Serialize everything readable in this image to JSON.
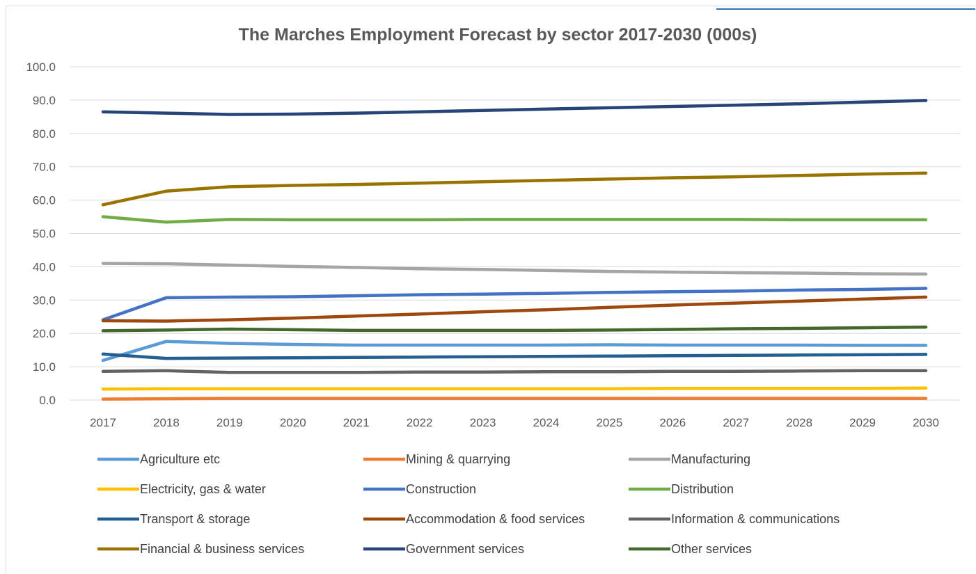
{
  "chart_data": {
    "type": "line",
    "title": "The Marches Employment Forecast by sector 2017-2030 (000s)",
    "xlabel": "",
    "ylabel": "",
    "ylim": [
      0,
      100
    ],
    "yticks": [
      "0.0",
      "10.0",
      "20.0",
      "30.0",
      "40.0",
      "50.0",
      "60.0",
      "70.0",
      "80.0",
      "90.0",
      "100.0"
    ],
    "x": [
      "2017",
      "2018",
      "2019",
      "2020",
      "2021",
      "2022",
      "2023",
      "2024",
      "2025",
      "2026",
      "2027",
      "2028",
      "2029",
      "2030"
    ],
    "grid": true,
    "legend_position": "bottom",
    "series": [
      {
        "name": "Agriculture etc",
        "color": "#5b9bd5",
        "values": [
          11.9,
          17.6,
          17.0,
          16.7,
          16.5,
          16.5,
          16.5,
          16.5,
          16.6,
          16.5,
          16.5,
          16.5,
          16.4,
          16.4
        ]
      },
      {
        "name": "Mining & quarrying",
        "color": "#ed7d31",
        "values": [
          0.3,
          0.4,
          0.5,
          0.5,
          0.5,
          0.5,
          0.5,
          0.5,
          0.5,
          0.5,
          0.5,
          0.5,
          0.5,
          0.5
        ]
      },
      {
        "name": "Manufacturing",
        "color": "#a5a5a5",
        "values": [
          41.0,
          40.9,
          40.5,
          40.1,
          39.8,
          39.4,
          39.2,
          38.9,
          38.6,
          38.4,
          38.2,
          38.1,
          37.9,
          37.8
        ]
      },
      {
        "name": "Electricity, gas & water",
        "color": "#ffc000",
        "values": [
          3.3,
          3.4,
          3.4,
          3.4,
          3.4,
          3.4,
          3.4,
          3.4,
          3.4,
          3.5,
          3.5,
          3.5,
          3.5,
          3.6
        ]
      },
      {
        "name": "Construction",
        "color": "#4472c4",
        "values": [
          24.1,
          30.7,
          30.9,
          31.0,
          31.3,
          31.6,
          31.8,
          32.0,
          32.3,
          32.5,
          32.7,
          33.0,
          33.2,
          33.5
        ]
      },
      {
        "name": "Distribution",
        "color": "#70ad47",
        "values": [
          55.0,
          53.4,
          54.2,
          54.1,
          54.1,
          54.1,
          54.2,
          54.2,
          54.2,
          54.2,
          54.2,
          54.1,
          54.1,
          54.1
        ]
      },
      {
        "name": "Transport & storage",
        "color": "#255e91",
        "values": [
          13.8,
          12.5,
          12.6,
          12.7,
          12.8,
          12.9,
          13.0,
          13.1,
          13.2,
          13.3,
          13.4,
          13.5,
          13.6,
          13.7
        ]
      },
      {
        "name": "Accommodation & food services",
        "color": "#9e480e",
        "values": [
          23.8,
          23.7,
          24.1,
          24.6,
          25.2,
          25.8,
          26.5,
          27.1,
          27.8,
          28.5,
          29.1,
          29.7,
          30.3,
          30.9
        ]
      },
      {
        "name": "Information & communications",
        "color": "#636363",
        "values": [
          8.6,
          8.8,
          8.3,
          8.3,
          8.3,
          8.4,
          8.4,
          8.5,
          8.5,
          8.6,
          8.6,
          8.7,
          8.8,
          8.8
        ]
      },
      {
        "name": "Financial & business services",
        "color": "#997300",
        "values": [
          58.6,
          62.7,
          64.0,
          64.4,
          64.7,
          65.1,
          65.5,
          65.9,
          66.3,
          66.7,
          67.0,
          67.4,
          67.8,
          68.1
        ]
      },
      {
        "name": "Government services",
        "color": "#264478",
        "values": [
          86.5,
          86.1,
          85.7,
          85.8,
          86.1,
          86.5,
          86.9,
          87.3,
          87.7,
          88.1,
          88.5,
          88.9,
          89.4,
          89.9
        ]
      },
      {
        "name": "Other services",
        "color": "#43682b",
        "values": [
          20.8,
          21.0,
          21.3,
          21.1,
          20.9,
          20.9,
          20.9,
          20.9,
          21.0,
          21.2,
          21.4,
          21.5,
          21.7,
          21.9
        ]
      }
    ]
  }
}
